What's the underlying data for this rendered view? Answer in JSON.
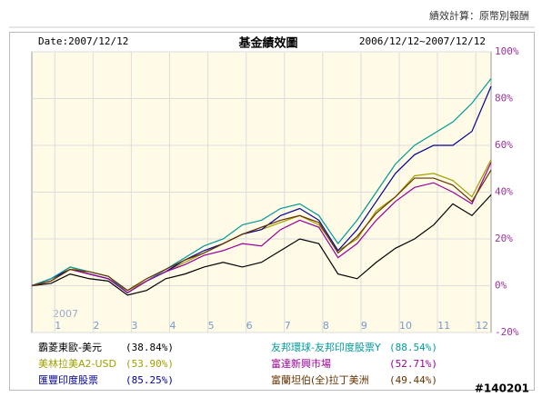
{
  "calculation_note": "績效計算：原幣別報酬",
  "watermark": "#140201",
  "chart_data": {
    "type": "line",
    "title": "基金績效圖",
    "date_label": "Date:2007/12/12",
    "period_label": "2006/12/12~2007/12/12",
    "year_label": "2007",
    "x": [
      0.4,
      0.9,
      1.4,
      1.9,
      2.4,
      2.9,
      3.4,
      3.9,
      4.4,
      4.9,
      5.4,
      5.9,
      6.4,
      6.9,
      7.4,
      7.9,
      8.4,
      8.9,
      9.4,
      9.9,
      10.4,
      10.9,
      11.4,
      11.9,
      12.4
    ],
    "xlim": [
      0.4,
      12.4
    ],
    "xticks": [
      1,
      2,
      3,
      4,
      5,
      6,
      7,
      8,
      9,
      10,
      11,
      12
    ],
    "ylim": [
      -20,
      100
    ],
    "yticks": [
      {
        "value": -20,
        "label": "-20%"
      },
      {
        "value": 0,
        "label": "0%"
      },
      {
        "value": 20,
        "label": "20%"
      },
      {
        "value": 40,
        "label": "40%"
      },
      {
        "value": 60,
        "label": "60%"
      },
      {
        "value": 80,
        "label": "80%"
      },
      {
        "value": 100,
        "label": "100%"
      }
    ],
    "grid": true,
    "series": [
      {
        "name": "霸菱東歐-美元",
        "color": "#000000",
        "total_return": 38.84,
        "total_return_label": "(38.84%)",
        "values": [
          0,
          1,
          5,
          3,
          2,
          -4,
          -2,
          3,
          5,
          8,
          10,
          8,
          10,
          15,
          20,
          18,
          5,
          3,
          10,
          16,
          20,
          26,
          35,
          30,
          38.84
        ]
      },
      {
        "name": "美林拉美A2-USD",
        "color": "#a0a000",
        "total_return": 53.9,
        "total_return_label": "(53.90%)",
        "values": [
          0,
          2,
          8,
          5,
          3,
          -2,
          2,
          6,
          10,
          14,
          18,
          22,
          24,
          27,
          30,
          26,
          15,
          20,
          32,
          38,
          47,
          48,
          45,
          38,
          53.9
        ]
      },
      {
        "name": "匯豐印度股票",
        "color": "#000099",
        "total_return": 85.25,
        "total_return_label": "(85.25%)",
        "values": [
          0,
          3,
          7,
          5,
          3,
          -3,
          2,
          6,
          11,
          15,
          18,
          22,
          24,
          30,
          33,
          28,
          15,
          24,
          36,
          48,
          56,
          60,
          60,
          66,
          85.25
        ]
      },
      {
        "name": "友邦環球-友邦印度股票Y",
        "color": "#009999",
        "total_return": 88.54,
        "total_return_label": "(88.54%)",
        "values": [
          0,
          3,
          8,
          6,
          4,
          -3,
          2,
          7,
          12,
          17,
          20,
          26,
          28,
          33,
          35,
          30,
          18,
          28,
          40,
          52,
          60,
          65,
          70,
          78,
          88.54
        ]
      },
      {
        "name": "富達新興市場",
        "color": "#990099",
        "total_return": 52.71,
        "total_return_label": "(52.71%)",
        "values": [
          0,
          2,
          7,
          5,
          3,
          -3,
          2,
          6,
          9,
          13,
          15,
          18,
          17,
          24,
          28,
          25,
          12,
          18,
          28,
          36,
          42,
          44,
          40,
          35,
          52.71
        ]
      },
      {
        "name": "富蘭坦伯(全)拉丁美洲",
        "color": "#663300",
        "total_return": 49.44,
        "total_return_label": "(49.44%)",
        "values": [
          0,
          2,
          7,
          6,
          4,
          -2,
          3,
          7,
          11,
          14,
          18,
          22,
          25,
          28,
          30,
          27,
          14,
          21,
          31,
          38,
          46,
          46,
          43,
          36,
          49.44
        ]
      }
    ]
  }
}
